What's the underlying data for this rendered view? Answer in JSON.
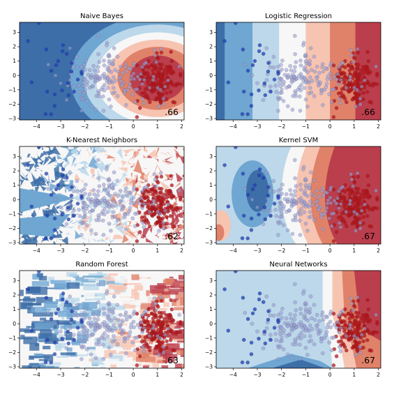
{
  "colors": {
    "class0_point": "#1f3fb8",
    "class1_point": "#b8141b",
    "blue_dark": "#3d6ea8",
    "blue_mid": "#6fa6d2",
    "blue_light": "#bcd8ea",
    "white": "#f7f7f7",
    "red_light": "#f7c4b2",
    "red_mid": "#e0826a",
    "red_dark": "#bb3e4c"
  },
  "chart_data": [
    {
      "type": "scatter",
      "title": "Naive Bayes",
      "score": ".66",
      "xlim": [
        -4.7,
        2.1
      ],
      "ylim": [
        -3.1,
        3.7
      ],
      "xticks": [
        -4,
        -3,
        -2,
        -1,
        0,
        1,
        2
      ],
      "yticks": [
        -3,
        -2,
        -1,
        0,
        1,
        2,
        3
      ],
      "decision_surface": "concentric rings centred near (1.0, -0.3); blue outside, red core"
    },
    {
      "type": "scatter",
      "title": "Logistic Regression",
      "score": ".66",
      "xlim": [
        -4.7,
        2.1
      ],
      "ylim": [
        -3.1,
        3.7
      ],
      "xticks": [
        -4,
        -3,
        -2,
        -1,
        0,
        1,
        2
      ],
      "yticks": [
        -3,
        -2,
        -1,
        0,
        1,
        2,
        3
      ],
      "decision_surface": "vertical bands, blue on the left to red on the right"
    },
    {
      "type": "scatter",
      "title": "K-Nearest Neighbors",
      "score": ".62",
      "xlim": [
        -4.7,
        2.1
      ],
      "ylim": [
        -3.1,
        3.7
      ],
      "xticks": [
        -4,
        -3,
        -2,
        -1,
        0,
        1,
        2
      ],
      "yticks": [
        -3,
        -2,
        -1,
        0,
        1,
        2,
        3
      ],
      "decision_surface": "fragmented patches of blue and red"
    },
    {
      "type": "scatter",
      "title": "Kernel SVM",
      "score": ".67",
      "xlim": [
        -4.7,
        2.1
      ],
      "ylim": [
        -3.1,
        3.7
      ],
      "xticks": [
        -4,
        -3,
        -2,
        -1,
        0,
        1,
        2
      ],
      "yticks": [
        -3,
        -2,
        -1,
        0,
        1,
        2,
        3
      ],
      "decision_surface": "smooth curved blue region on the left, red on the right"
    },
    {
      "type": "scatter",
      "title": "Random Forest",
      "score": ".63",
      "xlim": [
        -4.7,
        2.1
      ],
      "ylim": [
        -3.1,
        3.7
      ],
      "xticks": [
        -4,
        -3,
        -2,
        -1,
        0,
        1,
        2
      ],
      "yticks": [
        -3,
        -2,
        -1,
        0,
        1,
        2,
        3
      ],
      "decision_surface": "axis-aligned rectangular blocks of blue and red"
    },
    {
      "type": "scatter",
      "title": "Neural Networks",
      "score": ".67",
      "xlim": [
        -4.7,
        2.1
      ],
      "ylim": [
        -3.1,
        3.7
      ],
      "xticks": [
        -4,
        -3,
        -2,
        -1,
        0,
        1,
        2
      ],
      "yticks": [
        -3,
        -2,
        -1,
        0,
        1,
        2,
        3
      ],
      "decision_surface": "light blue on the left, angled bands to red on the right"
    }
  ]
}
